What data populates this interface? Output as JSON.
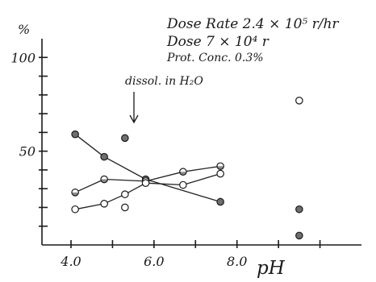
{
  "chart_data": {
    "type": "line",
    "x": [
      4.1,
      4.8,
      5.3,
      5.8,
      6.7,
      7.6
    ],
    "xlabel": "pH",
    "ylabel": "%",
    "xlim": [
      3.3,
      11.0
    ],
    "ylim": [
      0,
      110
    ],
    "xticks": [
      4.0,
      6.0,
      8.0
    ],
    "xtick_labels": [
      "4.0",
      "6.0",
      "8.0"
    ],
    "yticks": [
      50,
      100
    ],
    "ytick_labels": [
      "50",
      "100"
    ],
    "annotations": [
      "Dose Rate  2.4 × 10⁵ r/hr",
      "Dose   7 × 10⁴ r",
      "Prot. Conc.  0.3%",
      "dissol. in H₂O"
    ],
    "series": [
      {
        "marker": "filled",
        "x": [
          4.1,
          4.8,
          5.8,
          7.6
        ],
        "values": [
          59,
          47,
          35,
          23
        ],
        "color": "#6e6e6e"
      },
      {
        "marker": "half",
        "x": [
          4.1,
          4.8,
          5.8,
          6.7,
          7.6
        ],
        "values": [
          28,
          35,
          34,
          39,
          42
        ],
        "color": "#9a9a9a"
      },
      {
        "marker": "open",
        "x": [
          4.1,
          4.8,
          5.3,
          5.8,
          6.7,
          7.6
        ],
        "values": [
          19,
          22,
          27,
          33,
          32,
          38
        ],
        "color": "#ffffff"
      }
    ],
    "unconnected_points": [
      {
        "marker": "filled",
        "x": 5.3,
        "y": 57
      },
      {
        "marker": "open",
        "x": 5.3,
        "y": 20
      },
      {
        "marker": "open",
        "x": 9.5,
        "y": 77
      },
      {
        "marker": "filled",
        "x": 9.5,
        "y": 19
      },
      {
        "marker": "filled",
        "x": 9.5,
        "y": 5
      }
    ],
    "grid": false
  }
}
